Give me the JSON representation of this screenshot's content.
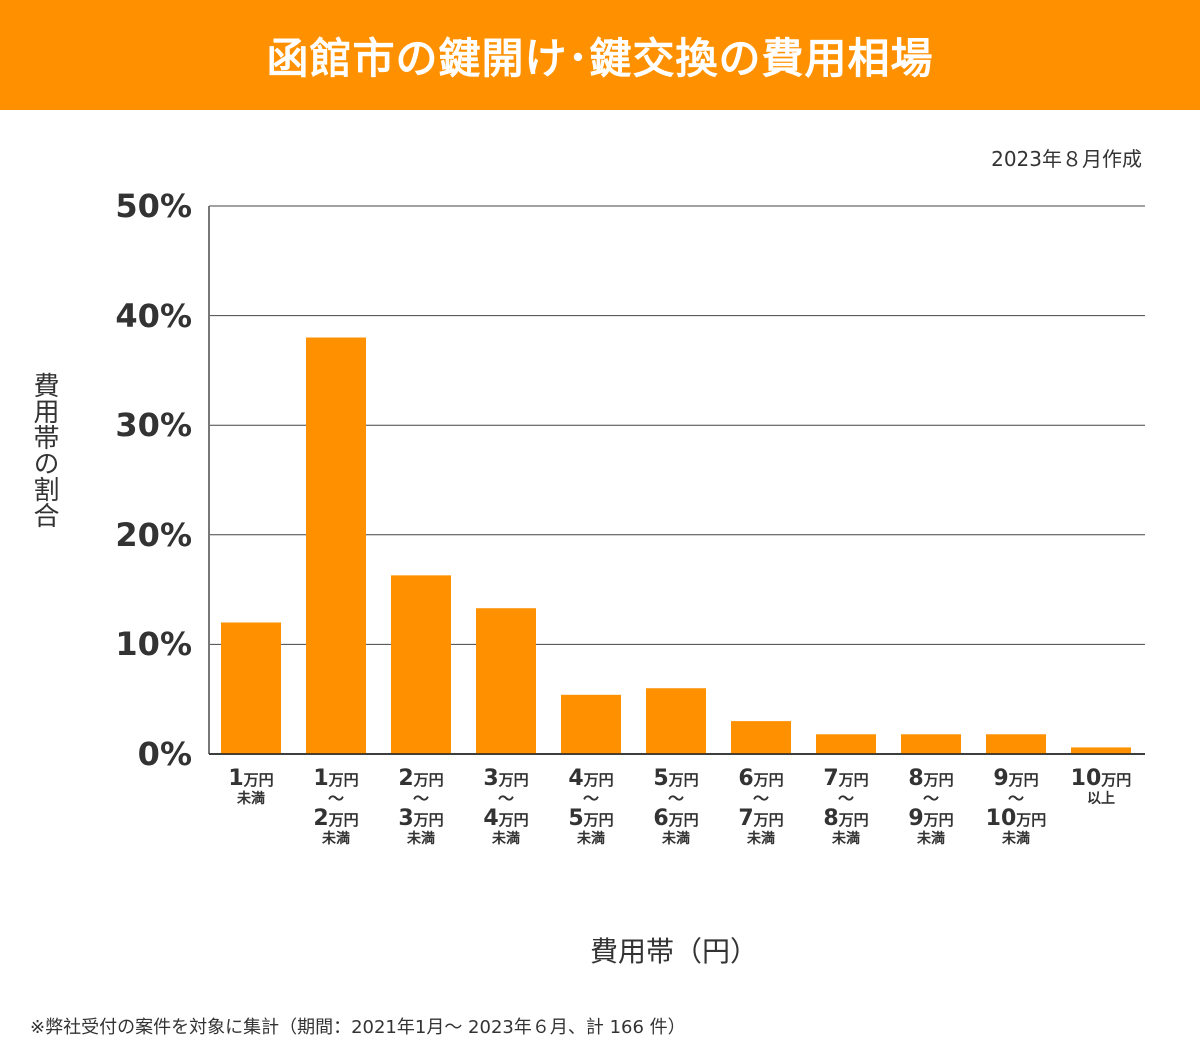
{
  "header": {
    "title": "函館市の鍵開け･鍵交換の費用相場"
  },
  "date_note": "2023年８月作成",
  "footnote": "※弊社受付の案件を対象に集計（期間：2021年1月～ 2023年６月、計 166 件）",
  "colors": {
    "brand": "#FF9100",
    "bar": "#FF9100",
    "text": "#333333",
    "grid": "#333333"
  },
  "chart_data": {
    "type": "bar",
    "title": "函館市の鍵開け･鍵交換の費用相場",
    "xlabel": "費用帯（円）",
    "ylabel": "費用帯の割合",
    "ylim": [
      0,
      50
    ],
    "yticks": [
      "0%",
      "10%",
      "20%",
      "30%",
      "40%",
      "50%"
    ],
    "ytick_values": [
      0,
      10,
      20,
      30,
      40,
      50
    ],
    "grid": true,
    "categories": [
      {
        "from": "1",
        "from_unit": "万円",
        "to": null,
        "to_unit": null,
        "suffix": "未満"
      },
      {
        "from": "1",
        "from_unit": "万円",
        "tilde": "～",
        "to": "2",
        "to_unit": "万円",
        "suffix": "未満"
      },
      {
        "from": "2",
        "from_unit": "万円",
        "tilde": "～",
        "to": "3",
        "to_unit": "万円",
        "suffix": "未満"
      },
      {
        "from": "3",
        "from_unit": "万円",
        "tilde": "～",
        "to": "4",
        "to_unit": "万円",
        "suffix": "未満"
      },
      {
        "from": "4",
        "from_unit": "万円",
        "tilde": "～",
        "to": "5",
        "to_unit": "万円",
        "suffix": "未満"
      },
      {
        "from": "5",
        "from_unit": "万円",
        "tilde": "～",
        "to": "6",
        "to_unit": "万円",
        "suffix": "未満"
      },
      {
        "from": "6",
        "from_unit": "万円",
        "tilde": "～",
        "to": "7",
        "to_unit": "万円",
        "suffix": "未満"
      },
      {
        "from": "7",
        "from_unit": "万円",
        "tilde": "～",
        "to": "8",
        "to_unit": "万円",
        "suffix": "未満"
      },
      {
        "from": "8",
        "from_unit": "万円",
        "tilde": "～",
        "to": "9",
        "to_unit": "万円",
        "suffix": "未満"
      },
      {
        "from": "9",
        "from_unit": "万円",
        "tilde": "～",
        "to": "10",
        "to_unit": "万円",
        "suffix": "未満"
      },
      {
        "from": "10",
        "from_unit": "万円",
        "to": null,
        "to_unit": null,
        "suffix": "以上"
      }
    ],
    "values": [
      12.0,
      38.0,
      16.3,
      13.3,
      5.4,
      6.0,
      3.0,
      1.8,
      1.8,
      1.8,
      0.6
    ]
  }
}
